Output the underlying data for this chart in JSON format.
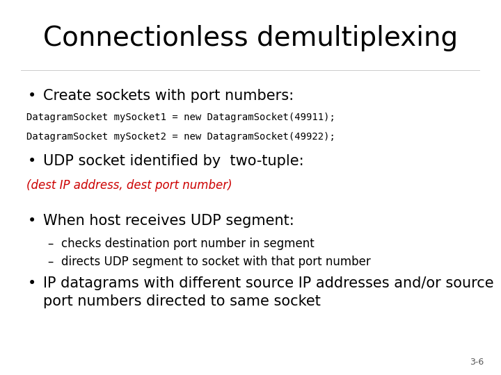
{
  "title": "Connectionless demultiplexing",
  "background_color": "#ffffff",
  "title_fontsize": 28,
  "slide_number": "3-6",
  "bullet1": "Create sockets with port numbers:",
  "code_line1": "DatagramSocket mySocket1 = new DatagramSocket(49911);",
  "code_line2": "DatagramSocket mySocket2 = new DatagramSocket(49922);",
  "bullet2": "UDP socket identified by  two-tuple:",
  "tuple_text": "(dest IP address, dest port number)",
  "tuple_color": "#cc0000",
  "bullet3": "When host receives UDP segment:",
  "sub1": "checks destination port number in segment",
  "sub2": "directs UDP segment to socket with that port number",
  "bullet4_line1": "IP datagrams with different source IP addresses and/or source",
  "bullet4_line2": "port numbers directed to same socket"
}
